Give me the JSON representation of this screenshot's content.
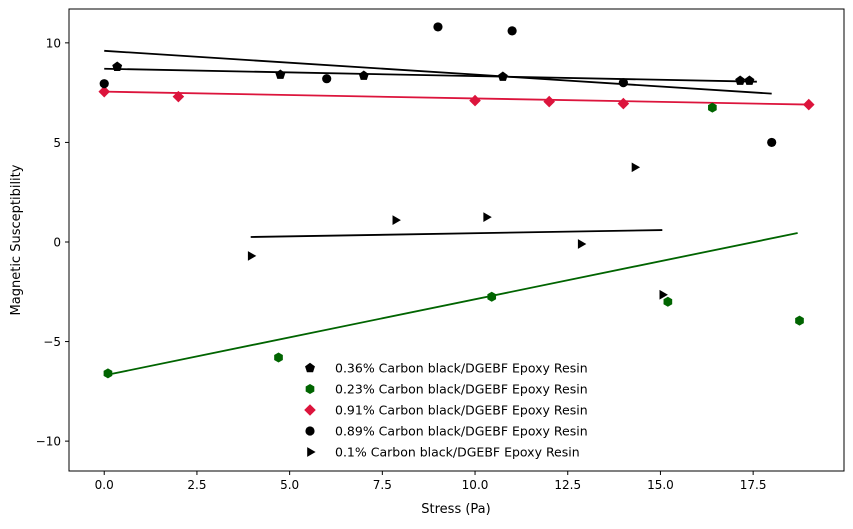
{
  "chart_data": {
    "type": "scatter",
    "title": "",
    "xlabel": "Stress (Pa)",
    "ylabel": "Magnetic Susceptibility",
    "xlim": [
      -0.95,
      19.95
    ],
    "ylim": [
      -11.5,
      11.7
    ],
    "xticks": [
      0.0,
      2.5,
      5.0,
      7.5,
      10.0,
      12.5,
      15.0,
      17.5
    ],
    "xtick_labels": [
      "0.0",
      "2.5",
      "5.0",
      "7.5",
      "10.0",
      "12.5",
      "15.0",
      "17.5"
    ],
    "yticks": [
      -10,
      -5,
      0,
      5,
      10
    ],
    "ytick_labels": [
      "−10",
      "−5",
      "0",
      "5",
      "10"
    ],
    "grid": false,
    "legend_position": "lower-center",
    "series": [
      {
        "name": "0.36% Carbon black/DGEBF Epoxy Resin",
        "marker": "pentagon",
        "color": "#000000",
        "x": [
          0.35,
          4.75,
          7.0,
          10.75,
          17.15,
          17.4
        ],
        "y": [
          8.8,
          8.4,
          8.35,
          8.3,
          8.1,
          8.1
        ],
        "fit": {
          "x": [
            0.0,
            17.6
          ],
          "y": [
            8.7,
            8.05
          ]
        }
      },
      {
        "name": "0.23% Carbon black/DGEBF Epoxy Resin",
        "marker": "hexagon",
        "color": "#006400",
        "x": [
          0.1,
          4.7,
          10.45,
          15.2,
          16.4,
          18.75
        ],
        "y": [
          -6.6,
          -5.8,
          -2.75,
          -3.0,
          6.75,
          -3.95
        ],
        "fit": {
          "x": [
            0.0,
            18.7
          ],
          "y": [
            -6.7,
            0.45
          ]
        }
      },
      {
        "name": "0.91% Carbon black/DGEBF Epoxy Resin",
        "marker": "diamond",
        "color": "#dc143c",
        "x": [
          0.0,
          2.0,
          10.0,
          12.0,
          14.0,
          19.0
        ],
        "y": [
          7.55,
          7.3,
          7.1,
          7.05,
          6.95,
          6.9
        ],
        "fit": {
          "x": [
            0.0,
            19.0
          ],
          "y": [
            7.55,
            6.9
          ]
        }
      },
      {
        "name": "0.89% Carbon black/DGEBF Epoxy Resin",
        "marker": "circle",
        "color": "#000000",
        "x": [
          0.0,
          6.0,
          9.0,
          11.0,
          14.0,
          18.0
        ],
        "y": [
          7.95,
          8.2,
          10.8,
          10.6,
          8.0,
          5.0
        ],
        "fit": {
          "x": [
            0.0,
            18.0
          ],
          "y": [
            9.6,
            7.45
          ]
        }
      },
      {
        "name": "0.1% Carbon black/DGEBF Epoxy Resin",
        "marker": "triangle-right",
        "color": "#000000",
        "x": [
          3.95,
          7.85,
          10.3,
          12.85,
          14.3,
          15.05
        ],
        "y": [
          -0.7,
          1.1,
          1.25,
          -0.1,
          3.75,
          -2.65
        ],
        "fit": {
          "x": [
            3.95,
            15.05
          ],
          "y": [
            0.25,
            0.6
          ]
        }
      }
    ]
  }
}
